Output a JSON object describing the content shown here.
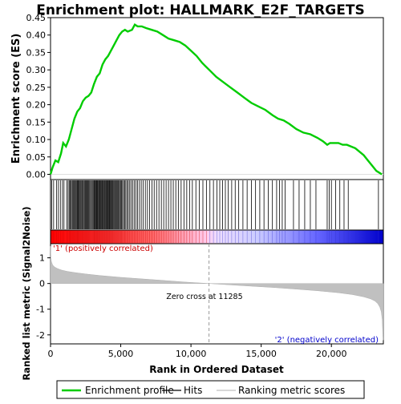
{
  "chart_data": {
    "type": "line",
    "title": "Enrichment plot: HALLMARK_E2F_TARGETS",
    "es_panel": {
      "ylabel": "Enrichment score (ES)",
      "ylim": [
        -0.015,
        0.45
      ],
      "yticks": [
        "0.00",
        "0.05",
        "0.10",
        "0.15",
        "0.20",
        "0.25",
        "0.30",
        "0.35",
        "0.40",
        "0.45"
      ],
      "ytick_values": [
        0,
        0.05,
        0.1,
        0.15,
        0.2,
        0.25,
        0.3,
        0.35,
        0.4,
        0.45
      ],
      "series": [
        {
          "name": "Enrichment profile",
          "color": "#00cc00",
          "x": [
            0,
            150,
            350,
            550,
            750,
            900,
            1100,
            1300,
            1500,
            1700,
            1900,
            2100,
            2300,
            2500,
            2700,
            2900,
            3100,
            3300,
            3500,
            3700,
            3900,
            4100,
            4300,
            4500,
            4700,
            4900,
            5100,
            5300,
            5500,
            5800,
            6000,
            6200,
            6500,
            6800,
            7200,
            7600,
            8000,
            8400,
            8800,
            9200,
            9600,
            10000,
            10400,
            10800,
            11300,
            11800,
            12300,
            12800,
            13300,
            13800,
            14300,
            14800,
            15300,
            15800,
            16200,
            16600,
            17000,
            17500,
            18000,
            18500,
            19000,
            19400,
            19700,
            19900,
            20200,
            20500,
            20800,
            21100,
            21400,
            21700,
            22000,
            22300,
            22600,
            22900,
            23200,
            23400,
            23600
          ],
          "y": [
            0.0,
            0.02,
            0.04,
            0.035,
            0.06,
            0.09,
            0.08,
            0.1,
            0.13,
            0.16,
            0.18,
            0.19,
            0.21,
            0.22,
            0.225,
            0.235,
            0.26,
            0.28,
            0.29,
            0.315,
            0.33,
            0.34,
            0.355,
            0.37,
            0.385,
            0.4,
            0.41,
            0.415,
            0.41,
            0.415,
            0.43,
            0.425,
            0.425,
            0.42,
            0.415,
            0.41,
            0.4,
            0.39,
            0.385,
            0.38,
            0.37,
            0.355,
            0.34,
            0.32,
            0.3,
            0.28,
            0.265,
            0.25,
            0.235,
            0.22,
            0.205,
            0.195,
            0.185,
            0.17,
            0.16,
            0.155,
            0.145,
            0.13,
            0.12,
            0.115,
            0.105,
            0.095,
            0.085,
            0.09,
            0.09,
            0.09,
            0.085,
            0.085,
            0.08,
            0.075,
            0.065,
            0.055,
            0.04,
            0.025,
            0.01,
            0.005,
            0.0
          ]
        }
      ]
    },
    "hits_panel": {
      "legend_name": "Hits",
      "color": "#000000",
      "hit_positions": [
        80,
        220,
        420,
        560,
        700,
        850,
        960,
        1150,
        1250,
        1330,
        1400,
        1470,
        1540,
        1600,
        1660,
        1720,
        1780,
        1840,
        1900,
        1950,
        2000,
        2060,
        2120,
        2180,
        2240,
        2300,
        2350,
        2420,
        2480,
        2540,
        2600,
        2660,
        2720,
        2780,
        2850,
        2910,
        2980,
        3040,
        3100,
        3150,
        3200,
        3260,
        3310,
        3360,
        3420,
        3470,
        3520,
        3570,
        3620,
        3680,
        3730,
        3780,
        3840,
        3890,
        3950,
        4000,
        4060,
        4110,
        4170,
        4220,
        4280,
        4330,
        4390,
        4440,
        4500,
        4560,
        4620,
        4680,
        4740,
        4800,
        4860,
        4920,
        4990,
        5060,
        5130,
        5200,
        5280,
        5360,
        5450,
        5540,
        5640,
        5740,
        5850,
        5960,
        6080,
        6200,
        6330,
        6460,
        6600,
        6750,
        6900,
        7060,
        7220,
        7380,
        7550,
        7720,
        7890,
        8060,
        8230,
        8400,
        8570,
        8740,
        8920,
        9100,
        9300,
        9500,
        9700,
        9900,
        10100,
        10350,
        10600,
        10850,
        11100,
        11350,
        11600,
        11850,
        12050,
        12250,
        12450,
        12650,
        12900,
        13150,
        13400,
        13700,
        14000,
        14300,
        14600,
        14900,
        15200,
        15500,
        15800,
        16100,
        16300,
        16500,
        16700,
        17300,
        17700,
        18100,
        18500,
        18900,
        19700,
        19850,
        20000,
        20300,
        20600,
        20900,
        21200,
        23350
      ]
    },
    "rank_panel": {
      "ylabel": "Ranked list metric (Signal2Noise)",
      "xlabel": "Rank in Ordered Dataset",
      "ylim": [
        -2.35,
        1.55
      ],
      "yticks": [
        "-2",
        "-1",
        "0",
        "1"
      ],
      "ytick_values": [
        -2,
        -1,
        0,
        1
      ],
      "xlim": [
        0,
        23700
      ],
      "xticks": [
        "0",
        "5,000",
        "10,000",
        "15,000",
        "20,000"
      ],
      "xtick_values": [
        0,
        5000,
        10000,
        15000,
        20000
      ],
      "zero_cross_label": "Zero cross at 11285",
      "zero_cross": 11285,
      "pos_label": "'1' (positively correlated)",
      "neg_label": "'2' (negatively correlated)",
      "color": "#c0c0c0",
      "x": [
        0,
        20,
        60,
        150,
        300,
        500,
        800,
        1200,
        1800,
        2500,
        3500,
        5000,
        6500,
        8000,
        9500,
        11285,
        13000,
        14500,
        16000,
        17500,
        19000,
        20500,
        21500,
        22300,
        22800,
        23100,
        23300,
        23450,
        23550,
        23620,
        23680,
        23700
      ],
      "y": [
        1.45,
        1.0,
        0.85,
        0.72,
        0.64,
        0.58,
        0.52,
        0.47,
        0.42,
        0.37,
        0.31,
        0.24,
        0.18,
        0.12,
        0.06,
        0.0,
        -0.06,
        -0.11,
        -0.16,
        -0.22,
        -0.28,
        -0.36,
        -0.43,
        -0.52,
        -0.6,
        -0.68,
        -0.78,
        -0.92,
        -1.1,
        -1.4,
        -2.2,
        -2.2
      ]
    },
    "legend": {
      "entries": [
        "Enrichment profile",
        "Hits",
        "Ranking metric scores"
      ],
      "colors": [
        "#00cc00",
        "#000000",
        "#c0c0c0"
      ],
      "placement": "bottom"
    },
    "colorbar": {
      "colors": [
        "#ff0000",
        "#ff9999",
        "#ffccee",
        "#ccccff",
        "#6666ff",
        "#0000cc"
      ]
    }
  }
}
